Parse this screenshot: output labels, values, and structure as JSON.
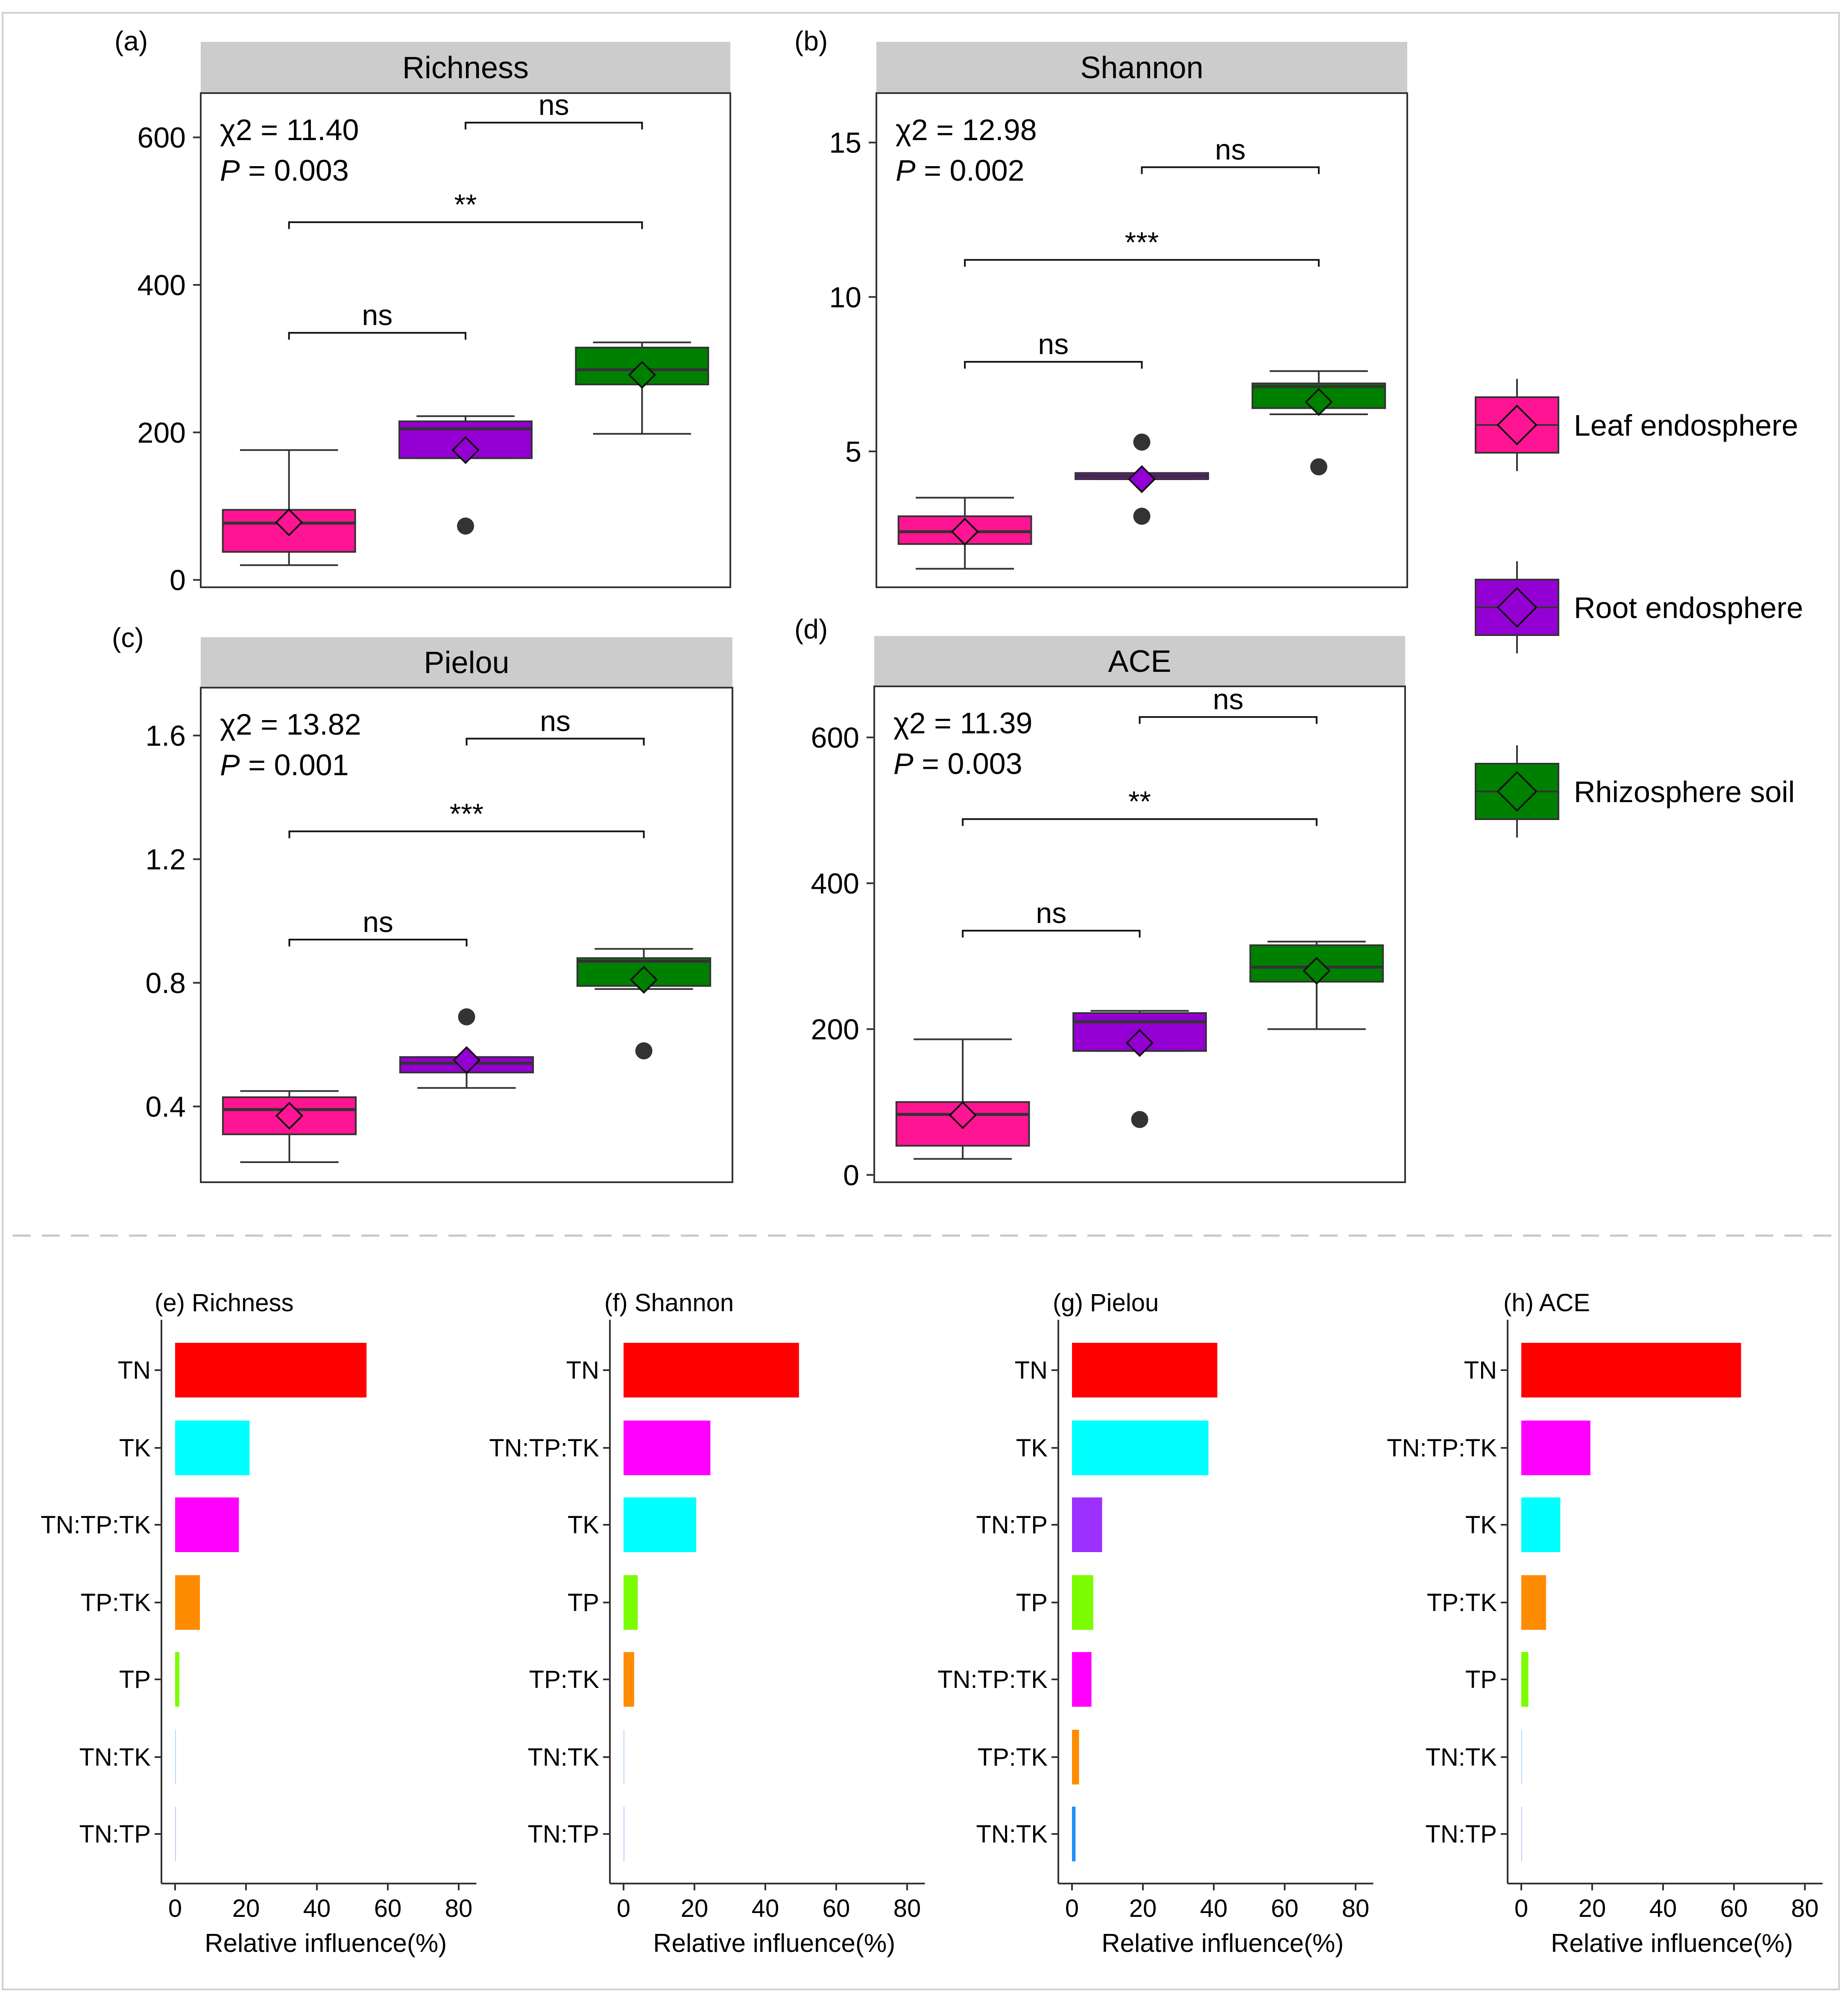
{
  "colors": {
    "leaf": "#FF1493",
    "root": "#9400D3",
    "rhizo": "#008000",
    "strip": "#CCCCCC",
    "outlier": "#333333",
    "separator": "#C8C8C8",
    "bar_TN": "#FF0000",
    "bar_TK": "#00FFFF",
    "bar_TNTPTK": "#FF00FF",
    "bar_TPTK": "#FF8C00",
    "bar_TP": "#7CFC00",
    "bar_TNTP_purple": "#9B30FF",
    "bar_TNTK_blue": "#1E90FF"
  },
  "legend": {
    "items": [
      {
        "label": "Leaf endosphere",
        "color_key": "leaf"
      },
      {
        "label": "Root endosphere",
        "color_key": "root"
      },
      {
        "label": "Rhizosphere soil",
        "color_key": "rhizo"
      }
    ]
  },
  "chart_data": [
    {
      "type": "box",
      "panel_label": "(a)",
      "strip_title": "Richness",
      "groups": [
        "Leaf endosphere",
        "Root endosphere",
        "Rhizosphere soil"
      ],
      "ylim": [
        -10,
        660
      ],
      "yticks": [
        0,
        200,
        400,
        600
      ],
      "boxes": [
        {
          "whisker_low": 20,
          "q1": 38,
          "median": 77,
          "q3": 95,
          "whisker_high": 176,
          "mean": 78,
          "outliers": []
        },
        {
          "whisker_low": 165,
          "q1": 165,
          "median": 205,
          "q3": 215,
          "whisker_high": 222,
          "mean": 176,
          "outliers": [
            73
          ]
        },
        {
          "whisker_low": 198,
          "q1": 265,
          "median": 285,
          "q3": 315,
          "whisker_high": 322,
          "mean": 278,
          "outliers": []
        }
      ],
      "stat_line1": "χ2 = 11.40",
      "stat_p_label": "P",
      "stat_p_value": " = 0.003",
      "comparisons": [
        {
          "from": 0,
          "to": 1,
          "label": "ns",
          "y": 335
        },
        {
          "from": 0,
          "to": 2,
          "label": "**",
          "y": 485
        },
        {
          "from": 1,
          "to": 2,
          "label": "ns",
          "y": 620
        }
      ]
    },
    {
      "type": "box",
      "panel_label": "(b)",
      "strip_title": "Shannon",
      "groups": [
        "Leaf endosphere",
        "Root endosphere",
        "Rhizosphere soil"
      ],
      "ylim": [
        0.6,
        16.6
      ],
      "yticks": [
        5,
        10,
        15
      ],
      "boxes": [
        {
          "whisker_low": 1.2,
          "q1": 2.0,
          "median": 2.4,
          "q3": 2.9,
          "whisker_high": 3.5,
          "mean": 2.4,
          "outliers": []
        },
        {
          "whisker_low": 4.1,
          "q1": 4.1,
          "median": 4.2,
          "q3": 4.3,
          "whisker_high": 4.3,
          "mean": 4.1,
          "outliers": [
            5.3,
            2.9
          ]
        },
        {
          "whisker_low": 6.2,
          "q1": 6.4,
          "median": 7.1,
          "q3": 7.2,
          "whisker_high": 7.6,
          "mean": 6.6,
          "outliers": [
            4.5
          ]
        }
      ],
      "stat_line1": "χ2 = 12.98",
      "stat_p_label": "P",
      "stat_p_value": " = 0.002",
      "comparisons": [
        {
          "from": 0,
          "to": 1,
          "label": "ns",
          "y": 7.9
        },
        {
          "from": 0,
          "to": 2,
          "label": "***",
          "y": 11.2
        },
        {
          "from": 1,
          "to": 2,
          "label": "ns",
          "y": 14.2
        }
      ]
    },
    {
      "type": "box",
      "panel_label": "(c)",
      "strip_title": "Pielou",
      "groups": [
        "Leaf endosphere",
        "Root endosphere",
        "Rhizosphere soil"
      ],
      "ylim": [
        0.155,
        1.755
      ],
      "yticks": [
        0.4,
        0.8,
        1.2,
        1.6
      ],
      "boxes": [
        {
          "whisker_low": 0.22,
          "q1": 0.31,
          "median": 0.39,
          "q3": 0.43,
          "whisker_high": 0.45,
          "mean": 0.37,
          "outliers": []
        },
        {
          "whisker_low": 0.46,
          "q1": 0.51,
          "median": 0.54,
          "q3": 0.56,
          "whisker_high": 0.56,
          "mean": 0.55,
          "outliers": [
            0.69
          ]
        },
        {
          "whisker_low": 0.78,
          "q1": 0.79,
          "median": 0.87,
          "q3": 0.88,
          "whisker_high": 0.91,
          "mean": 0.81,
          "outliers": [
            0.58
          ]
        }
      ],
      "stat_line1": "χ2 = 13.82",
      "stat_p_label": "P",
      "stat_p_value": " = 0.001",
      "comparisons": [
        {
          "from": 0,
          "to": 1,
          "label": "ns",
          "y": 0.94
        },
        {
          "from": 0,
          "to": 2,
          "label": "***",
          "y": 1.29
        },
        {
          "from": 1,
          "to": 2,
          "label": "ns",
          "y": 1.59
        }
      ]
    },
    {
      "type": "box",
      "panel_label": "(d)",
      "strip_title": "ACE",
      "groups": [
        "Leaf endosphere",
        "Root endosphere",
        "Rhizosphere soil"
      ],
      "ylim": [
        -10,
        670
      ],
      "yticks": [
        0,
        200,
        400,
        600
      ],
      "boxes": [
        {
          "whisker_low": 22,
          "q1": 40,
          "median": 83,
          "q3": 100,
          "whisker_high": 186,
          "mean": 82,
          "outliers": []
        },
        {
          "whisker_low": 170,
          "q1": 170,
          "median": 210,
          "q3": 222,
          "whisker_high": 225,
          "mean": 181,
          "outliers": [
            76
          ]
        },
        {
          "whisker_low": 200,
          "q1": 265,
          "median": 285,
          "q3": 315,
          "whisker_high": 320,
          "mean": 280,
          "outliers": []
        }
      ],
      "stat_line1": "χ2 = 11.39",
      "stat_p_label": "P",
      "stat_p_value": " = 0.003",
      "comparisons": [
        {
          "from": 0,
          "to": 1,
          "label": "ns",
          "y": 335
        },
        {
          "from": 0,
          "to": 2,
          "label": "**",
          "y": 488
        },
        {
          "from": 1,
          "to": 2,
          "label": "ns",
          "y": 628
        }
      ]
    },
    {
      "type": "bar",
      "orientation": "horizontal",
      "title": "(e) Richness",
      "xlabel": "Relative influence(%)",
      "xlim": [
        -2.5,
        85
      ],
      "xticks": [
        0,
        20,
        40,
        60,
        80
      ],
      "categories": [
        "TN",
        "TK",
        "TN:TP:TK",
        "TP:TK",
        "TP",
        "TN:TK",
        "TN:TP"
      ],
      "values": [
        54,
        21,
        18,
        7,
        1.2,
        0.2,
        0.1
      ],
      "color_keys": [
        "bar_TN",
        "bar_TK",
        "bar_TNTPTK",
        "bar_TPTK",
        "bar_TP",
        "bar_TNTK_blue",
        "bar_TNTP_purple"
      ]
    },
    {
      "type": "bar",
      "orientation": "horizontal",
      "title": "(f) Shannon",
      "xlabel": "Relative influence(%)",
      "xlim": [
        -2.5,
        85
      ],
      "xticks": [
        0,
        20,
        40,
        60,
        80
      ],
      "categories": [
        "TN",
        "TN:TP:TK",
        "TK",
        "TP",
        "TP:TK",
        "TN:TK",
        "TN:TP"
      ],
      "values": [
        49.5,
        24.5,
        20.5,
        4,
        3,
        0.2,
        0.1
      ],
      "color_keys": [
        "bar_TN",
        "bar_TNTPTK",
        "bar_TK",
        "bar_TP",
        "bar_TPTK",
        "bar_TNTK_blue",
        "bar_TNTP_purple"
      ]
    },
    {
      "type": "bar",
      "orientation": "horizontal",
      "title": "(g) Pielou",
      "xlabel": "Relative influence(%)",
      "xlim": [
        -2.5,
        85
      ],
      "xticks": [
        0,
        20,
        40,
        60,
        80
      ],
      "categories": [
        "TN",
        "TK",
        "TN:TP",
        "TP",
        "TN:TP:TK",
        "TP:TK",
        "TN:TK"
      ],
      "values": [
        41,
        38.5,
        8.5,
        6,
        5.5,
        2,
        1
      ],
      "color_keys": [
        "bar_TN",
        "bar_TK",
        "bar_TNTP_purple",
        "bar_TP",
        "bar_TNTPTK",
        "bar_TPTK",
        "bar_TNTK_blue"
      ]
    },
    {
      "type": "bar",
      "orientation": "horizontal",
      "title": "(h) ACE",
      "xlabel": "Relative influence(%)",
      "xlim": [
        -2.5,
        85
      ],
      "xticks": [
        0,
        20,
        40,
        60,
        80
      ],
      "categories": [
        "TN",
        "TN:TP:TK",
        "TK",
        "TP:TK",
        "TP",
        "TN:TK",
        "TN:TP"
      ],
      "values": [
        62,
        19.5,
        11,
        7,
        2,
        0.2,
        0.1
      ],
      "color_keys": [
        "bar_TN",
        "bar_TNTPTK",
        "bar_TK",
        "bar_TPTK",
        "bar_TP",
        "bar_TNTK_blue",
        "bar_TNTP_purple"
      ]
    }
  ]
}
